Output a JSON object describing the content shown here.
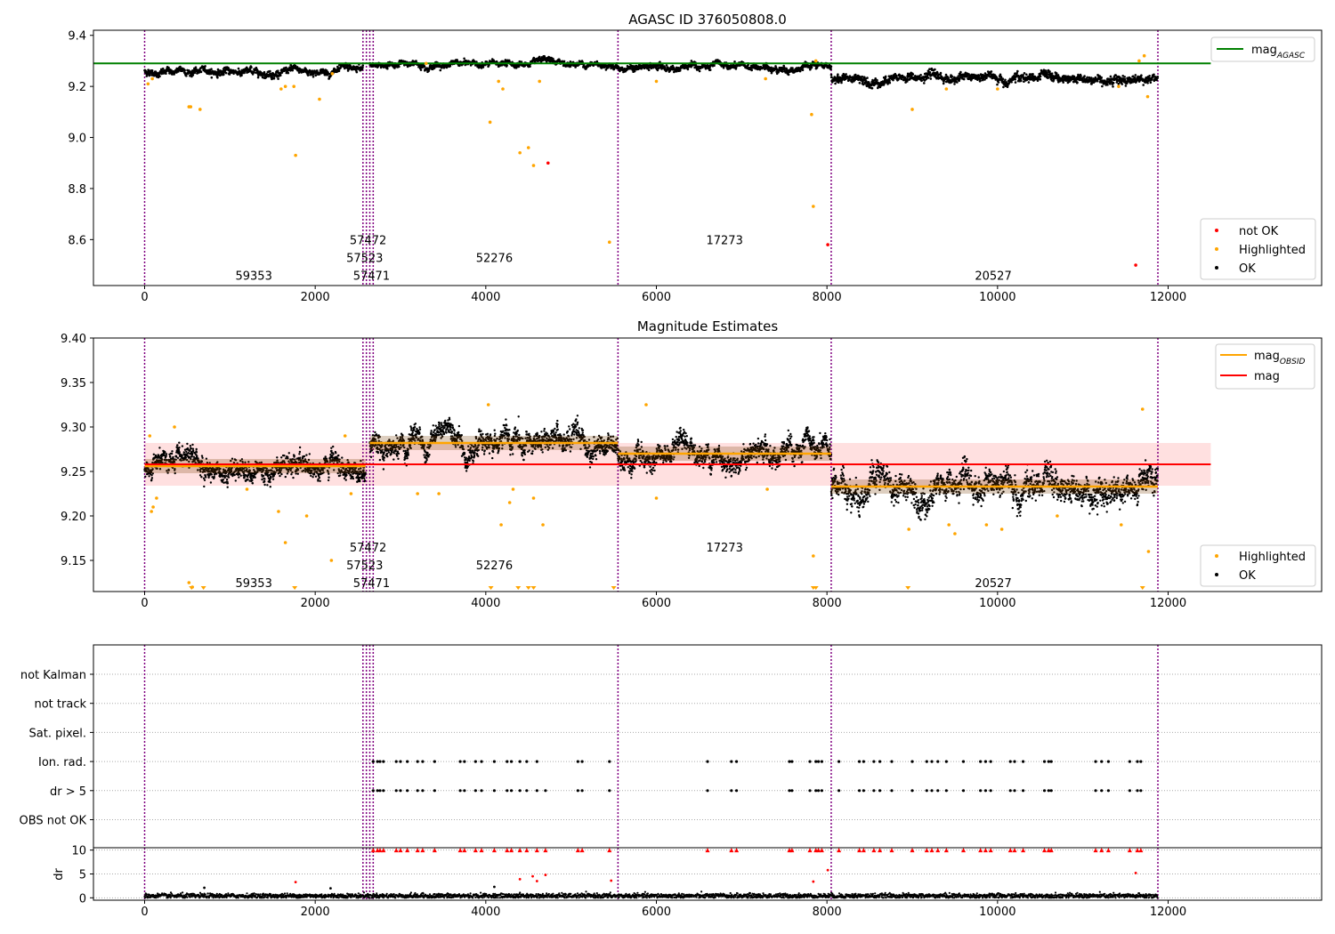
{
  "figure_title": "AGASC ID 376050808.0",
  "chart_data": [
    {
      "type": "scatter",
      "title": "",
      "xlim": [
        -600,
        13800
      ],
      "ylim": [
        8.42,
        9.42
      ],
      "xticks": [
        0,
        2000,
        4000,
        6000,
        8000,
        10000,
        12000
      ],
      "yticks": [
        9.4,
        9.2,
        9.0,
        8.8,
        8.6
      ],
      "grid": false,
      "legend_position": "top-right",
      "legend": [
        {
          "label": "mag",
          "sub": "AGASC",
          "marker": "line",
          "color": "#008000"
        }
      ],
      "legend2_position": "bottom-right",
      "legend2": [
        {
          "label": "not OK",
          "marker": "dot",
          "color": "#ff0000"
        },
        {
          "label": "Highlighted",
          "marker": "dot",
          "color": "#ffa500"
        },
        {
          "label": "OK",
          "marker": "dot",
          "color": "#000000"
        }
      ],
      "hlines": [
        {
          "y": 9.29,
          "x0": -600,
          "x1": 12500,
          "color": "#008000"
        }
      ],
      "segments": [
        {
          "x0": 0,
          "x1": 2560,
          "level": 9.258,
          "noise": 0.012
        },
        {
          "x0": 2640,
          "x1": 5550,
          "level": 9.288,
          "noise": 0.01
        },
        {
          "x0": 5550,
          "x1": 8050,
          "level": 9.272,
          "noise": 0.011
        },
        {
          "x0": 8050,
          "x1": 11880,
          "level": 9.232,
          "noise": 0.015
        }
      ],
      "highlighted_points": [
        [
          40,
          9.21
        ],
        [
          90,
          9.23
        ],
        [
          520,
          9.12
        ],
        [
          540,
          9.12
        ],
        [
          650,
          9.11
        ],
        [
          1600,
          9.19
        ],
        [
          1650,
          9.2
        ],
        [
          1750,
          9.2
        ],
        [
          1770,
          8.93
        ],
        [
          2050,
          9.15
        ],
        [
          2200,
          9.25
        ],
        [
          3300,
          9.29
        ],
        [
          4050,
          9.06
        ],
        [
          4150,
          9.22
        ],
        [
          4200,
          9.19
        ],
        [
          4400,
          8.94
        ],
        [
          4500,
          8.96
        ],
        [
          4560,
          8.89
        ],
        [
          4630,
          9.22
        ],
        [
          5450,
          8.59
        ],
        [
          6000,
          9.22
        ],
        [
          7280,
          9.23
        ],
        [
          7820,
          9.09
        ],
        [
          7840,
          8.73
        ],
        [
          7870,
          9.3
        ],
        [
          9000,
          9.11
        ],
        [
          9400,
          9.19
        ],
        [
          10000,
          9.19
        ],
        [
          11420,
          9.2
        ],
        [
          11660,
          9.3
        ],
        [
          11720,
          9.32
        ],
        [
          11760,
          9.16
        ]
      ],
      "notok_points": [
        [
          4730,
          8.9
        ],
        [
          8010,
          8.58
        ],
        [
          11620,
          8.5
        ]
      ],
      "obsid_labels": [
        {
          "text": "59353",
          "x": 1280,
          "y": 8.46
        },
        {
          "text": "57472",
          "x": 2620,
          "y": 8.6
        },
        {
          "text": "57523",
          "x": 2580,
          "y": 8.53
        },
        {
          "text": "57471",
          "x": 2660,
          "y": 8.46
        },
        {
          "text": "52276",
          "x": 4100,
          "y": 8.53
        },
        {
          "text": "17273",
          "x": 6800,
          "y": 8.6
        },
        {
          "text": "20527",
          "x": 9950,
          "y": 8.46
        }
      ]
    },
    {
      "type": "scatter",
      "title": "Magnitude Estimates",
      "xlim": [
        -600,
        13800
      ],
      "ylim": [
        9.115,
        9.4
      ],
      "xticks": [
        0,
        2000,
        4000,
        6000,
        8000,
        10000,
        12000
      ],
      "yticks": [
        9.4,
        9.35,
        9.3,
        9.25,
        9.2,
        9.15
      ],
      "grid": false,
      "legend_position": "top-right",
      "legend": [
        {
          "label": "mag",
          "sub": "OBSID",
          "marker": "line",
          "color": "#ffa500"
        },
        {
          "label": "mag",
          "sub": "",
          "marker": "line",
          "color": "#ff0000"
        }
      ],
      "legend2_position": "bottom-right",
      "legend2": [
        {
          "label": "Highlighted",
          "marker": "dot",
          "color": "#ffa500"
        },
        {
          "label": "OK",
          "marker": "dot",
          "color": "#000000"
        }
      ],
      "mean_mag": 9.258,
      "mean_band": [
        9.234,
        9.282
      ],
      "mean_x_range": [
        0,
        12500
      ],
      "obsid_means": [
        {
          "x0": 0,
          "x1": 2590,
          "mag": 9.256
        },
        {
          "x0": 2640,
          "x1": 5550,
          "mag": 9.282
        },
        {
          "x0": 5550,
          "x1": 8050,
          "mag": 9.27
        },
        {
          "x0": 8050,
          "x1": 11880,
          "mag": 9.233
        }
      ],
      "segments": [
        {
          "x0": 0,
          "x1": 2590,
          "level": 9.255,
          "noise": 0.01
        },
        {
          "x0": 2640,
          "x1": 5550,
          "level": 9.281,
          "noise": 0.011
        },
        {
          "x0": 5550,
          "x1": 8050,
          "level": 9.268,
          "noise": 0.011
        },
        {
          "x0": 8050,
          "x1": 11880,
          "level": 9.232,
          "noise": 0.014
        }
      ],
      "highlighted_points": [
        [
          60,
          9.29
        ],
        [
          80,
          9.205
        ],
        [
          100,
          9.21
        ],
        [
          140,
          9.22
        ],
        [
          350,
          9.3
        ],
        [
          520,
          9.125
        ],
        [
          560,
          9.12
        ],
        [
          1200,
          9.23
        ],
        [
          1570,
          9.205
        ],
        [
          1650,
          9.17
        ],
        [
          1900,
          9.2
        ],
        [
          2190,
          9.15
        ],
        [
          2350,
          9.29
        ],
        [
          2420,
          9.225
        ],
        [
          3200,
          9.225
        ],
        [
          3450,
          9.225
        ],
        [
          4030,
          9.325
        ],
        [
          4180,
          9.19
        ],
        [
          4280,
          9.215
        ],
        [
          4320,
          9.23
        ],
        [
          4560,
          9.22
        ],
        [
          4670,
          9.19
        ],
        [
          5880,
          9.325
        ],
        [
          6000,
          9.22
        ],
        [
          7300,
          9.23
        ],
        [
          7840,
          9.155
        ],
        [
          8960,
          9.185
        ],
        [
          9430,
          9.19
        ],
        [
          9500,
          9.18
        ],
        [
          9870,
          9.19
        ],
        [
          10050,
          9.185
        ],
        [
          10700,
          9.2
        ],
        [
          11450,
          9.19
        ],
        [
          11700,
          9.32
        ],
        [
          11770,
          9.16
        ]
      ],
      "below_limit_markers": [
        550,
        690,
        1760,
        4060,
        4380,
        4500,
        4560,
        5500,
        7840,
        7870,
        8950,
        11700
      ],
      "obsid_labels": [
        {
          "text": "59353",
          "x": 1280,
          "y": 9.125
        },
        {
          "text": "57472",
          "x": 2620,
          "y": 9.165
        },
        {
          "text": "57523",
          "x": 2580,
          "y": 9.145
        },
        {
          "text": "57471",
          "x": 2660,
          "y": 9.125
        },
        {
          "text": "52276",
          "x": 4100,
          "y": 9.145
        },
        {
          "text": "17273",
          "x": 6800,
          "y": 9.165
        },
        {
          "text": "20527",
          "x": 9950,
          "y": 9.125
        }
      ]
    },
    {
      "type": "scatter",
      "title": "",
      "xlim": [
        -600,
        13800
      ],
      "categories": [
        "not Kalman",
        "not track",
        "Sat. pixel.",
        "Ion. rad.",
        "dr > 5",
        "OBS not OK"
      ],
      "grid": true,
      "flag_x": [
        2680,
        2730,
        2760,
        2800,
        2950,
        3000,
        3080,
        3200,
        3260,
        3400,
        3700,
        3750,
        3880,
        3950,
        4100,
        4250,
        4300,
        4400,
        4480,
        4600,
        4700,
        5080,
        5130,
        5450,
        6600,
        6880,
        6940,
        7560,
        7590,
        7800,
        7870,
        7900,
        7940,
        8140,
        8380,
        8430,
        8550,
        8620,
        8760,
        9000,
        9170,
        9230,
        9300,
        9400,
        9600,
        9800,
        9860,
        9920,
        10150,
        10200,
        10300,
        10550,
        10600,
        10630,
        11150,
        11220,
        11300,
        11550,
        11640,
        11680
      ],
      "flag_ion_exclude": [
        4700
      ],
      "dr_ylim": [
        -0.5,
        10.5
      ],
      "dr_yticks": [
        0,
        5,
        10
      ],
      "dr_ylabel": "dr",
      "dr_cap": 10,
      "dr_baseline": 0.4,
      "dr_spikes": [
        [
          700,
          2.1
        ],
        [
          1770,
          3.3
        ],
        [
          2180,
          2
        ],
        [
          4100,
          2.3
        ],
        [
          4400,
          3.9
        ],
        [
          4550,
          4.5
        ],
        [
          4600,
          3.5
        ],
        [
          4700,
          4.8
        ],
        [
          5470,
          3.6
        ],
        [
          7840,
          3.4
        ],
        [
          8010,
          5.8
        ],
        [
          11620,
          5.2
        ]
      ],
      "xticks": [
        0,
        2000,
        4000,
        6000,
        8000,
        10000,
        12000
      ]
    }
  ],
  "obsid_boundaries": [
    0,
    2560,
    2600,
    2640,
    2680,
    5550,
    8050,
    11880
  ]
}
